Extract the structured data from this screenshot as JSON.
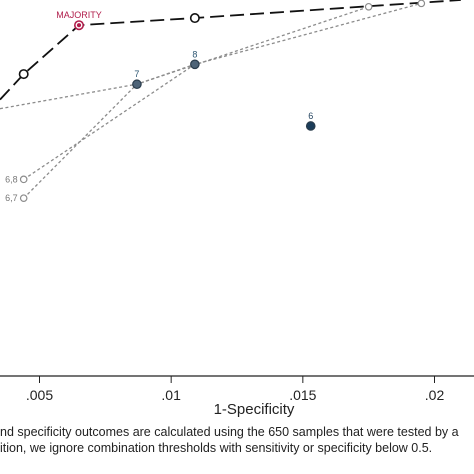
{
  "chart_data": {
    "type": "line",
    "xlabel": "1-Specificity",
    "ylabel": "",
    "x_ticks": [
      {
        "value": 0.005,
        "label": ".005"
      },
      {
        "value": 0.01,
        "label": ".01"
      },
      {
        "value": 0.015,
        "label": ".015"
      },
      {
        "value": 0.02,
        "label": ".02"
      }
    ],
    "xlim": [
      0.0035,
      0.0215
    ],
    "y_view": [
      0.0,
      1.0
    ],
    "grid": false,
    "series": [
      {
        "label": "MAJORITY",
        "style": "long-dash",
        "color": "#111111",
        "points": [
          {
            "x": 0.0035,
            "y": 0.735
          },
          {
            "x": 0.0044,
            "y": 0.803
          },
          {
            "x": 0.0065,
            "y": 0.933
          },
          {
            "x": 0.0109,
            "y": 0.952
          },
          {
            "x": 0.021,
            "y": 1.0
          }
        ]
      },
      {
        "label": "6,8",
        "style": "dotted",
        "color": "#8c8c8c",
        "points": [
          {
            "x": 0.0044,
            "y": 0.523
          },
          {
            "x": 0.0109,
            "y": 0.829
          },
          {
            "x": 0.0195,
            "y": 0.991
          }
        ]
      },
      {
        "label": "6,7",
        "style": "dotted",
        "color": "#8c8c8c",
        "points": [
          {
            "x": 0.0044,
            "y": 0.473
          },
          {
            "x": 0.0087,
            "y": 0.776
          },
          {
            "x": 0.0175,
            "y": 0.982
          }
        ]
      },
      {
        "label": "",
        "style": "dotted",
        "color": "#8c8c8c",
        "points": [
          {
            "x": 0.0035,
            "y": 0.711
          },
          {
            "x": 0.0087,
            "y": 0.776
          },
          {
            "x": 0.0109,
            "y": 0.829
          }
        ]
      }
    ],
    "markers": [
      {
        "label": "",
        "x": 0.0044,
        "y": 0.803,
        "style": "hollow",
        "color": "#111111"
      },
      {
        "label": "MAJORITY",
        "x": 0.0065,
        "y": 0.933,
        "style": "hollow",
        "color": "#b01c4a",
        "label_color": "#b01c4a"
      },
      {
        "label": "",
        "x": 0.0109,
        "y": 0.952,
        "style": "hollow",
        "color": "#111111"
      },
      {
        "label": "",
        "x": 0.0175,
        "y": 0.982,
        "style": "hollow-small",
        "color": "#8c8c8c"
      },
      {
        "label": "",
        "x": 0.0195,
        "y": 0.991,
        "style": "hollow-small",
        "color": "#8c8c8c"
      },
      {
        "label": "7",
        "x": 0.0087,
        "y": 0.776,
        "style": "filled",
        "color": "#4e6478",
        "label_color": "#2a5470"
      },
      {
        "label": "8",
        "x": 0.0109,
        "y": 0.829,
        "style": "filled",
        "color": "#4e6478",
        "label_color": "#2a5470"
      },
      {
        "label": "6",
        "x": 0.0153,
        "y": 0.665,
        "style": "filled",
        "color": "#1c3d5a",
        "label_color": "#1c3d5a"
      },
      {
        "label": "6,8",
        "x": 0.0044,
        "y": 0.523,
        "style": "hollow-small",
        "color": "#8c8c8c",
        "label_color": "#777777"
      },
      {
        "label": "6,7",
        "x": 0.0044,
        "y": 0.473,
        "style": "hollow-small",
        "color": "#8c8c8c",
        "label_color": "#777777"
      }
    ]
  },
  "notes": {
    "line1": "nd specificity outcomes are calculated using the 650 samples that were tested by a",
    "line2": "ition, we ignore combination thresholds with sensitivity or specificity below 0.5."
  }
}
